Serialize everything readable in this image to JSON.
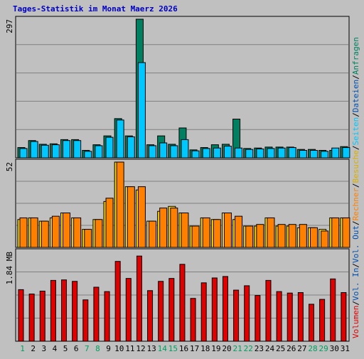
{
  "chart_data": {
    "type": "bar",
    "title": "Tages-Statistik im Monat Maerz 2026",
    "categories": [
      "1",
      "2",
      "3",
      "4",
      "5",
      "6",
      "7",
      "8",
      "9",
      "10",
      "11",
      "12",
      "13",
      "14",
      "15",
      "16",
      "17",
      "18",
      "19",
      "20",
      "21",
      "22",
      "23",
      "24",
      "25",
      "26",
      "27",
      "28",
      "29",
      "30",
      "31"
    ],
    "weekend_days": [
      "1",
      "7",
      "8",
      "14",
      "15",
      "21",
      "22",
      "28",
      "29"
    ],
    "panels": [
      {
        "id": "top",
        "scale_label": "297",
        "ymax": 297,
        "series": [
          {
            "name": "Anfragen",
            "color": "#008060",
            "values": [
              22,
              37,
              29,
              30,
              39,
              39,
              16,
              28,
              47,
              84,
              47,
              297,
              28,
              47,
              29,
              64,
              17,
              22,
              28,
              29,
              83,
              20,
              21,
              23,
              23,
              23,
              18,
              18,
              16,
              16,
              24
            ]
          },
          {
            "name": "Seiten",
            "color": "#00c8ff",
            "values": [
              20,
              35,
              27,
              28,
              37,
              37,
              14,
              26,
              44,
              81,
              45,
              204,
              26,
              32,
              26,
              39,
              15,
              20,
              21,
              25,
              21,
              18,
              19,
              20,
              21,
              22,
              16,
              16,
              14,
              21,
              22
            ]
          }
        ]
      },
      {
        "id": "middle",
        "scale_label": "52",
        "ymax": 52,
        "series": [
          {
            "name": "Besuche",
            "color": "#ffd800",
            "values": [
              17,
              18,
              16,
              18,
              21,
              18,
              11,
              17,
              28,
              52,
              37,
              35,
              16,
              22,
              25,
              21,
              13,
              18,
              17,
              21,
              17,
              13,
              13,
              18,
              13,
              13,
              12,
              12,
              11,
              18,
              18
            ]
          },
          {
            "name": "Rechner",
            "color": "#ff8000",
            "values": [
              18,
              18,
              16,
              19,
              21,
              18,
              11,
              17,
              30,
              52,
              37,
              37,
              16,
              24,
              24,
              21,
              13,
              18,
              17,
              21,
              19,
              13,
              14,
              18,
              14,
              14,
              14,
              12,
              10,
              18,
              18
            ]
          }
        ]
      },
      {
        "id": "bottom",
        "scale_label": "1.84 MB",
        "ymax": 1.84,
        "series": [
          {
            "name": "Volumen",
            "color": "#e00000",
            "values": [
              1.06,
              0.97,
              1.03,
              1.25,
              1.26,
              1.23,
              0.85,
              1.11,
              1.02,
              1.64,
              1.29,
              1.75,
              1.04,
              1.23,
              1.29,
              1.58,
              0.88,
              1.2,
              1.3,
              1.33,
              1.05,
              1.14,
              0.94,
              1.25,
              1.02,
              0.99,
              1.0,
              0.76,
              0.86,
              1.28,
              1.0
            ]
          }
        ]
      }
    ],
    "legend": {
      "placement": "right",
      "items": [
        {
          "text": "Anfragen",
          "color": "#008060"
        },
        {
          "text": "Dateien",
          "color": "#0050b0"
        },
        {
          "text": "Seiten",
          "color": "#00c8ff"
        },
        {
          "text": "Besuche",
          "color": "#d8b000"
        },
        {
          "text": "Rechner",
          "color": "#ff8000"
        },
        {
          "text": "Vol. Out",
          "color": "#0050b0"
        },
        {
          "text": "Vol. In",
          "color": "#0050b0"
        },
        {
          "text": "Volumen",
          "color": "#e00000"
        }
      ],
      "separator": "/"
    },
    "colors": {
      "background": "#c0c0c0",
      "title": "#0000c0",
      "day_label": "#000000",
      "weekend_label": "#00a060",
      "gridline": "#808080",
      "bar_outline": "#000000"
    }
  }
}
